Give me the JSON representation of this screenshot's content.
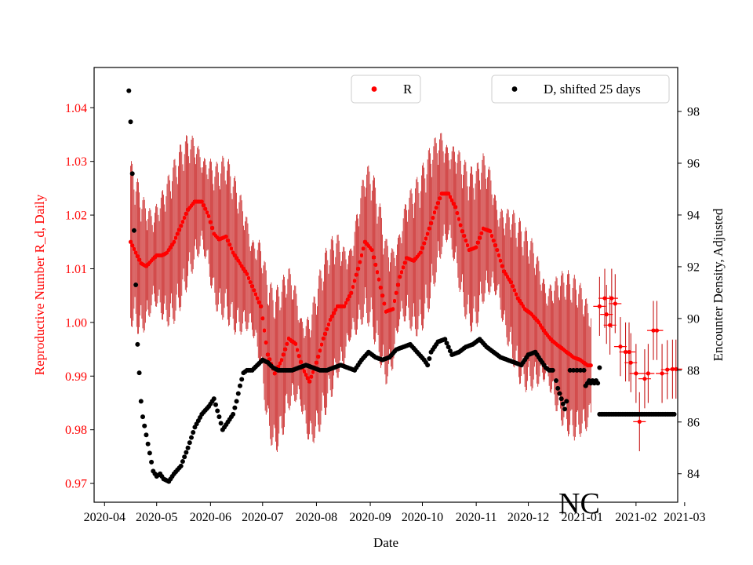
{
  "chart_data": {
    "type": "scatter",
    "title": "",
    "annotation": "NC",
    "xlabel": "Date",
    "ylabel_left": "Reproductive Number R_d, Daily",
    "ylabel_right": "Encounter Density, Adjusted",
    "x_ticks": [
      "2020-04",
      "2020-05",
      "2020-06",
      "2020-07",
      "2020-08",
      "2020-09",
      "2020-10",
      "2020-11",
      "2020-12",
      "2021-01",
      "2021-02",
      "2021-03"
    ],
    "x_range_days": [
      -6,
      330
    ],
    "x_tick_days": [
      0,
      30,
      61,
      91,
      122,
      153,
      183,
      214,
      244,
      275,
      306,
      334
    ],
    "ylim_left": [
      0.9665,
      1.0475
    ],
    "y_ticks_left": [
      "0.97",
      "0.98",
      "0.99",
      "1.00",
      "1.01",
      "1.02",
      "1.03",
      "1.04"
    ],
    "y_tick_values_left": [
      0.97,
      0.98,
      0.99,
      1.0,
      1.01,
      1.02,
      1.03,
      1.04
    ],
    "ylim_right": [
      82.9,
      99.7
    ],
    "y_ticks_right": [
      "84",
      "86",
      "88",
      "90",
      "92",
      "94",
      "96",
      "98"
    ],
    "y_tick_values_right": [
      84,
      86,
      88,
      90,
      92,
      94,
      96,
      98
    ],
    "colors": {
      "R": "#ff0000",
      "R_err": "#c00000",
      "D": "#000000",
      "left_axis": "#ff0000"
    },
    "series": [
      {
        "name": "R",
        "axis": "left",
        "marker": "dot",
        "color": "#ff0000",
        "daily_key_days": [
          15,
          18,
          21,
          24,
          27,
          30,
          33,
          36,
          40,
          44,
          48,
          52,
          56,
          60,
          63,
          66,
          70,
          74,
          78,
          82,
          86,
          90,
          94,
          98,
          102,
          106,
          110,
          114,
          118,
          122,
          126,
          130,
          134,
          138,
          142,
          146,
          150,
          154,
          158,
          162,
          166,
          170,
          174,
          178,
          182,
          186,
          190,
          194,
          198,
          202,
          206,
          210,
          214,
          218,
          222,
          226,
          230,
          234,
          238,
          242,
          246,
          250,
          254,
          258,
          262,
          266,
          270,
          274,
          278,
          280
        ],
        "daily_key_values": [
          1.015,
          1.013,
          1.011,
          1.0105,
          1.0115,
          1.0125,
          1.0125,
          1.013,
          1.015,
          1.018,
          1.021,
          1.0225,
          1.0225,
          1.0198,
          1.0165,
          1.0155,
          1.016,
          1.013,
          1.011,
          1.009,
          1.006,
          1.003,
          0.994,
          0.9905,
          0.993,
          0.997,
          0.996,
          0.9915,
          0.989,
          0.9925,
          0.997,
          1.0005,
          1.003,
          1.003,
          1.0055,
          1.01,
          1.015,
          1.0135,
          1.008,
          1.002,
          1.0025,
          1.0085,
          1.012,
          1.0115,
          1.013,
          1.0165,
          1.0205,
          1.024,
          1.024,
          1.0215,
          1.017,
          1.0135,
          1.014,
          1.0175,
          1.017,
          1.0135,
          1.0095,
          1.0075,
          1.0045,
          1.0025,
          1.0015,
          1.0,
          0.998,
          0.9965,
          0.9955,
          0.9945,
          0.9935,
          0.993,
          0.992,
          0.992
        ],
        "error_half_width": 0.012,
        "weekly_points": [
          {
            "day": 285,
            "value": 1.003
          },
          {
            "day": 288,
            "value": 1.0045
          },
          {
            "day": 289,
            "value": 1.0015
          },
          {
            "day": 291,
            "value": 0.9995
          },
          {
            "day": 292,
            "value": 1.0045
          },
          {
            "day": 294,
            "value": 1.0035
          },
          {
            "day": 297,
            "value": 0.9955
          },
          {
            "day": 300,
            "value": 0.9945
          },
          {
            "day": 302,
            "value": 0.9945
          },
          {
            "day": 303,
            "value": 0.9925
          },
          {
            "day": 306,
            "value": 0.9905
          },
          {
            "day": 308,
            "value": 0.9815
          },
          {
            "day": 311,
            "value": 0.9895
          },
          {
            "day": 313,
            "value": 0.9905
          },
          {
            "day": 316,
            "value": 0.9985
          },
          {
            "day": 318,
            "value": 0.9985
          },
          {
            "day": 321,
            "value": 0.9905
          },
          {
            "day": 324,
            "value": 0.9912
          },
          {
            "day": 327,
            "value": 0.9913
          },
          {
            "day": 329,
            "value": 0.9913
          }
        ]
      },
      {
        "name": "D, shifted 25 days",
        "axis": "right",
        "marker": "dot",
        "color": "#000000",
        "key_days": [
          14,
          15,
          16,
          17,
          18,
          19,
          21,
          22,
          24,
          26,
          28,
          30,
          32,
          34,
          37,
          40,
          44,
          48,
          52,
          56,
          60,
          63,
          66,
          68,
          70,
          72,
          74,
          76,
          78,
          80,
          82,
          85,
          88,
          91,
          94,
          97,
          100,
          104,
          108,
          112,
          116,
          120,
          124,
          128,
          132,
          136,
          140,
          144,
          148,
          152,
          156,
          160,
          164,
          168,
          172,
          176,
          180,
          184,
          186,
          188,
          192,
          196,
          200,
          204,
          208,
          212,
          216,
          220,
          224,
          228,
          232,
          236,
          240,
          244,
          248,
          250,
          252,
          254,
          256,
          258
        ],
        "key_values": [
          98.8,
          97.6,
          95.6,
          93.4,
          91.3,
          89.0,
          86.8,
          86.2,
          85.5,
          84.8,
          84.1,
          83.9,
          84.0,
          83.8,
          83.7,
          84.0,
          84.3,
          85.0,
          85.8,
          86.3,
          86.6,
          86.9,
          86.2,
          85.7,
          85.9,
          86.1,
          86.3,
          86.8,
          87.4,
          87.9,
          88.0,
          88.0,
          88.2,
          88.4,
          88.3,
          88.1,
          88.0,
          88.0,
          88.0,
          88.1,
          88.2,
          88.1,
          88.0,
          88.0,
          88.1,
          88.2,
          88.1,
          88.0,
          88.4,
          88.7,
          88.5,
          88.4,
          88.5,
          88.8,
          88.9,
          89.0,
          88.7,
          88.4,
          88.2,
          88.7,
          89.1,
          89.2,
          88.6,
          88.7,
          88.9,
          89.0,
          89.2,
          88.9,
          88.7,
          88.5,
          88.4,
          88.3,
          88.2,
          88.6,
          88.7,
          88.5,
          88.3,
          88.1,
          88.0,
          88.0
        ],
        "post_points": [
          {
            "day": 260,
            "value": 87.6
          },
          {
            "day": 261,
            "value": 87.3
          },
          {
            "day": 262,
            "value": 87.1
          },
          {
            "day": 263,
            "value": 86.9
          },
          {
            "day": 264,
            "value": 86.7
          },
          {
            "day": 265,
            "value": 86.5
          },
          {
            "day": 266,
            "value": 86.8
          },
          {
            "day": 268,
            "value": 88.0
          },
          {
            "day": 270,
            "value": 88.0
          },
          {
            "day": 272,
            "value": 88.0
          },
          {
            "day": 274,
            "value": 88.0
          },
          {
            "day": 276,
            "value": 88.0
          },
          {
            "day": 277,
            "value": 87.4
          },
          {
            "day": 278,
            "value": 87.5
          },
          {
            "day": 279,
            "value": 87.6
          },
          {
            "day": 280,
            "value": 87.5
          },
          {
            "day": 281,
            "value": 87.6
          },
          {
            "day": 282,
            "value": 87.5
          },
          {
            "day": 283,
            "value": 87.6
          },
          {
            "day": 284,
            "value": 87.5
          },
          {
            "day": 285,
            "value": 88.1
          }
        ],
        "flat_range_days": [
          285,
          328
        ],
        "flat_value": 86.3
      }
    ],
    "legend": {
      "left": "R",
      "right": "D, shifted 25 days"
    }
  }
}
